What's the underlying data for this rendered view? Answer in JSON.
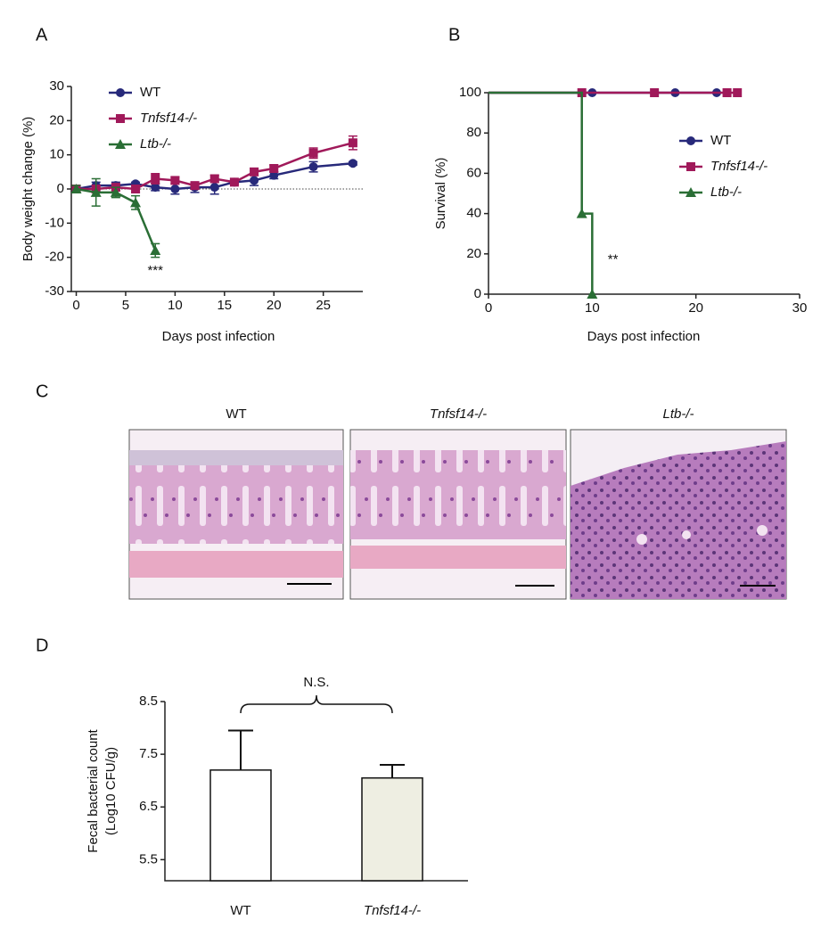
{
  "chart_data": [
    {
      "type": "line",
      "panel": "A",
      "xlabel": "Days post infection",
      "ylabel": "Body weight change (%)",
      "xlim": [
        -0.5,
        29
      ],
      "xticks": [
        0,
        5,
        10,
        15,
        20,
        25
      ],
      "ylim": [
        -30,
        30
      ],
      "yticks": [
        -30,
        -20,
        -10,
        0,
        10,
        20,
        30
      ],
      "zero_line": true,
      "legend": "upper left",
      "series": [
        {
          "name": "WT",
          "color": "#27297a",
          "marker": "circle",
          "x": [
            0,
            2,
            4,
            6,
            8,
            10,
            12,
            14,
            16,
            18,
            20,
            24,
            28
          ],
          "values": [
            0,
            1,
            1,
            1.5,
            0.5,
            0,
            0.5,
            0.5,
            2,
            2.5,
            4,
            6.5,
            7.5
          ],
          "errors": [
            1,
            1,
            1,
            0.5,
            1,
            1.5,
            1.5,
            2,
            0.5,
            1.5,
            1,
            1.5,
            0.5
          ]
        },
        {
          "name": "Tnfsf14-/-",
          "color": "#a0195a",
          "marker": "square",
          "x": [
            0,
            2,
            4,
            6,
            8,
            10,
            12,
            14,
            16,
            18,
            20,
            24,
            28
          ],
          "values": [
            0,
            0,
            0.5,
            0,
            3,
            2.5,
            1,
            3,
            2,
            5,
            6,
            10.5,
            13.5
          ],
          "errors": [
            1,
            1,
            1,
            1,
            1.5,
            1,
            1,
            1,
            0.5,
            1,
            1,
            1.5,
            2
          ]
        },
        {
          "name": "Ltb-/-",
          "color": "#2a6e35",
          "marker": "triangle",
          "x": [
            0,
            2,
            4,
            6,
            8
          ],
          "values": [
            0,
            -1,
            -1,
            -4,
            -18
          ],
          "errors": [
            1,
            4,
            1.5,
            2,
            2
          ]
        }
      ],
      "annotations": [
        {
          "text": "***",
          "x": 8,
          "y": -24
        }
      ]
    },
    {
      "type": "step",
      "panel": "B",
      "xlabel": "Days post infection",
      "ylabel": "Survival (%)",
      "xlim": [
        0,
        30
      ],
      "xticks": [
        0,
        10,
        20,
        30
      ],
      "ylim": [
        0,
        100
      ],
      "yticks": [
        0,
        20,
        40,
        60,
        80,
        100
      ],
      "legend": "center right",
      "series": [
        {
          "name": "WT",
          "color": "#27297a",
          "marker": "circle",
          "x": [
            0,
            10,
            18,
            22
          ],
          "values": [
            100,
            100,
            100,
            100
          ]
        },
        {
          "name": "Tnfsf14-/-",
          "color": "#a0195a",
          "marker": "square",
          "x": [
            0,
            9,
            16,
            23,
            24
          ],
          "values": [
            100,
            100,
            100,
            100,
            100
          ]
        },
        {
          "name": "Ltb-/-",
          "color": "#2a6e35",
          "marker": "triangle",
          "x": [
            0,
            9,
            10
          ],
          "values": [
            100,
            40,
            0
          ]
        }
      ],
      "annotations": [
        {
          "text": "**",
          "x": 12,
          "y": 17
        }
      ]
    },
    {
      "type": "bar",
      "panel": "D",
      "ylabel": [
        "Fecal bacterial count",
        "(Log10 CFU/g)"
      ],
      "categories": [
        "WT",
        "Tnfsf14-/-"
      ],
      "values": [
        7.2,
        7.05
      ],
      "errors": [
        0.75,
        0.25
      ],
      "colors": [
        "#ffffff",
        "#eeeee2"
      ],
      "ylim": [
        5.1,
        8.5
      ],
      "yticks": [
        5.5,
        6.5,
        7.5,
        8.5
      ],
      "annotations": [
        {
          "text": "N.S."
        }
      ]
    }
  ],
  "histology": {
    "panel": "C",
    "images": [
      "WT",
      "Tnfsf14-/-",
      "Ltb-/-"
    ]
  }
}
